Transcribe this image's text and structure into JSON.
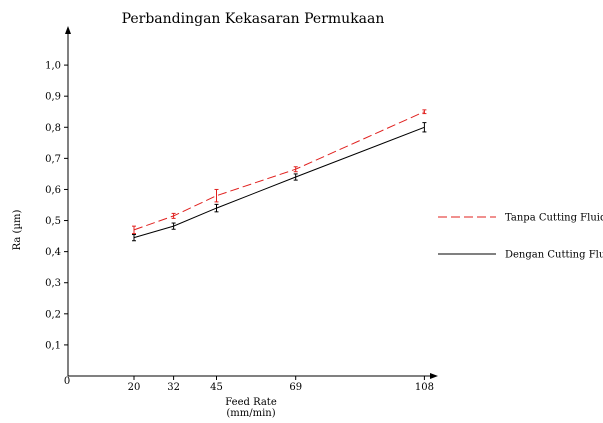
{
  "chart_data": {
    "type": "line",
    "title": "Perbandingan Kekasaran Permukaan",
    "xlabel": "Feed Rate",
    "xlabel_unit": "(mm/min)",
    "ylabel": "Ra (µm)",
    "x": [
      20,
      32,
      45,
      69,
      108
    ],
    "x_tick_labels": [
      "20",
      "32",
      "45",
      "69",
      "108"
    ],
    "origin_label": "0",
    "xlim": [
      0,
      120
    ],
    "ylim": [
      0,
      1.1
    ],
    "y_tick_labels": [
      "0,1",
      "0,2",
      "0,3",
      "0,4",
      "0,5",
      "0,6",
      "0,7",
      "0,8",
      "0,9",
      "1,0"
    ],
    "grid": false,
    "legend_position": "right",
    "series": [
      {
        "name": "Tanpa Cutting Fluid",
        "color": "#e0201e",
        "dash": "dashed",
        "values": [
          0.47,
          0.515,
          0.58,
          0.665,
          0.85
        ],
        "errors": [
          0.012,
          0.008,
          0.02,
          0.008,
          0.006
        ]
      },
      {
        "name": "Dengan Cutting Fluid",
        "color": "#000000",
        "dash": "solid",
        "values": [
          0.445,
          0.482,
          0.54,
          0.64,
          0.8
        ],
        "errors": [
          0.01,
          0.01,
          0.012,
          0.01,
          0.015
        ]
      }
    ]
  }
}
